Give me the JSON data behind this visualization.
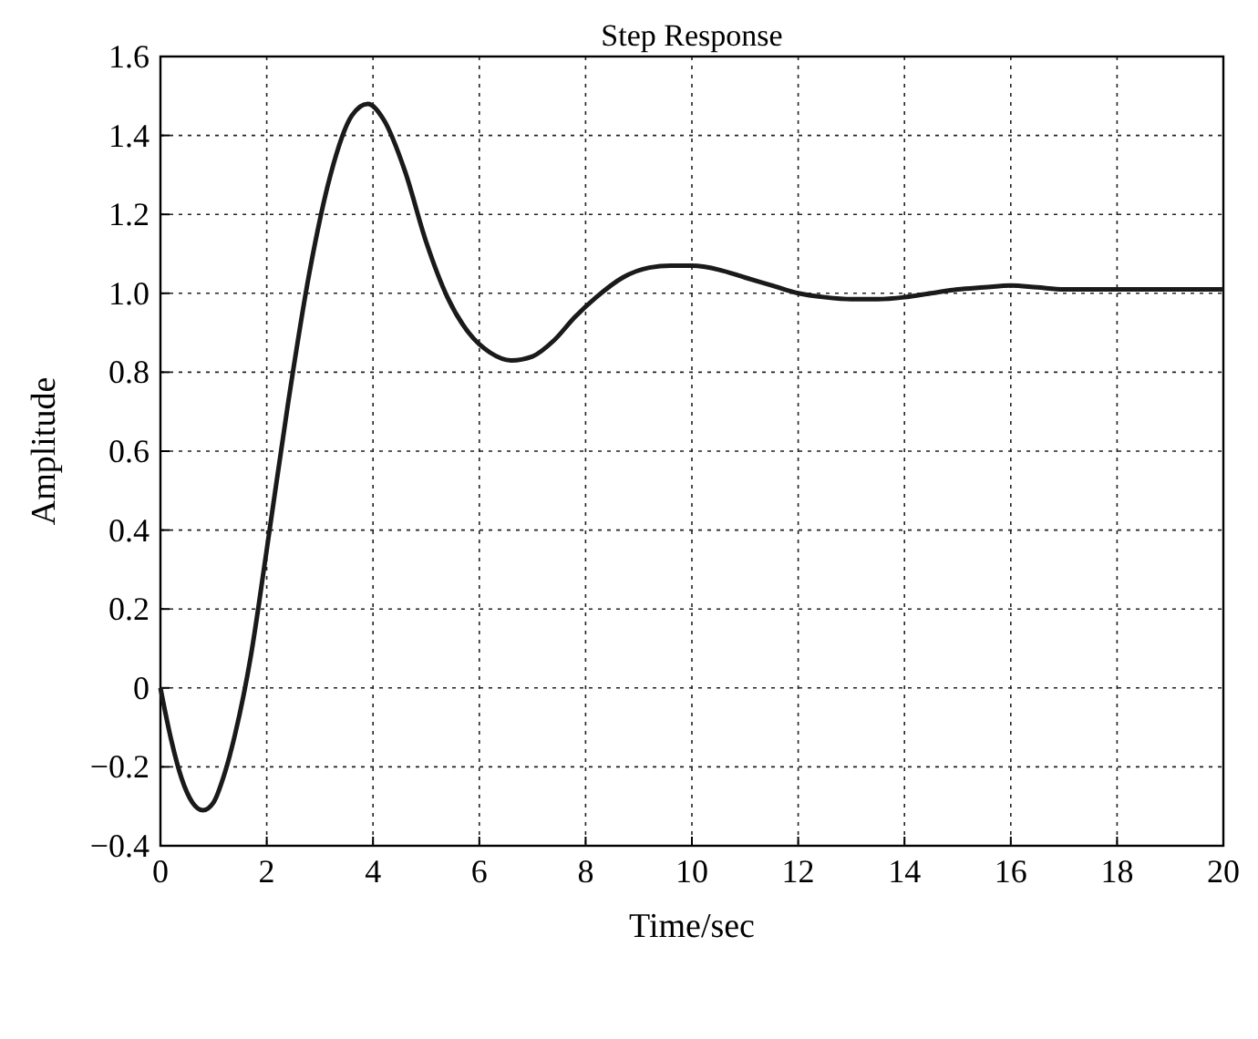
{
  "chart_data": {
    "type": "line",
    "title": "Step Response",
    "xlabel": "Time/sec",
    "ylabel": "Amplitude",
    "x": [
      0,
      0.2,
      0.4,
      0.6,
      0.8,
      1.0,
      1.2,
      1.4,
      1.7,
      2.0,
      2.4,
      2.8,
      3.2,
      3.6,
      3.9,
      4.2,
      4.6,
      5.0,
      5.4,
      5.8,
      6.2,
      6.6,
      7.0,
      7.4,
      7.8,
      8.2,
      8.7,
      9.2,
      9.6,
      10.0,
      10.5,
      11.0,
      11.5,
      12.0,
      12.5,
      13.0,
      13.5,
      14.0,
      14.5,
      15.0,
      15.5,
      16.0,
      16.5,
      17.0,
      18.0,
      19.0,
      20.0
    ],
    "series": [
      {
        "color": "#1a1a1a",
        "values": [
          0,
          -0.13,
          -0.23,
          -0.29,
          -0.31,
          -0.29,
          -0.22,
          -0.12,
          0.08,
          0.35,
          0.72,
          1.05,
          1.3,
          1.45,
          1.48,
          1.44,
          1.31,
          1.13,
          0.99,
          0.9,
          0.85,
          0.83,
          0.84,
          0.88,
          0.94,
          0.99,
          1.04,
          1.065,
          1.07,
          1.07,
          1.06,
          1.04,
          1.02,
          1.0,
          0.99,
          0.985,
          0.985,
          0.99,
          1.0,
          1.01,
          1.015,
          1.02,
          1.015,
          1.01,
          1.01,
          1.01,
          1.01
        ]
      }
    ],
    "xlim": [
      0,
      20
    ],
    "xticks": [
      0,
      2,
      4,
      6,
      8,
      10,
      12,
      14,
      16,
      18,
      20
    ],
    "ylim": [
      -0.4,
      1.6
    ],
    "yticks": [
      {
        "value": -0.4,
        "label": "−0.4"
      },
      {
        "value": -0.2,
        "label": "−0.2"
      },
      0,
      {
        "value": 0.2,
        "label": "0.2"
      },
      {
        "value": 0.4,
        "label": "0.4"
      },
      {
        "value": 0.6,
        "label": "0.6"
      },
      {
        "value": 0.8,
        "label": "0.8"
      },
      {
        "value": 1.0,
        "label": "1.0"
      },
      {
        "value": 1.2,
        "label": "1.2"
      },
      {
        "value": 1.4,
        "label": "1.4"
      },
      1.6
    ],
    "grid": true,
    "line_style": "solid"
  }
}
